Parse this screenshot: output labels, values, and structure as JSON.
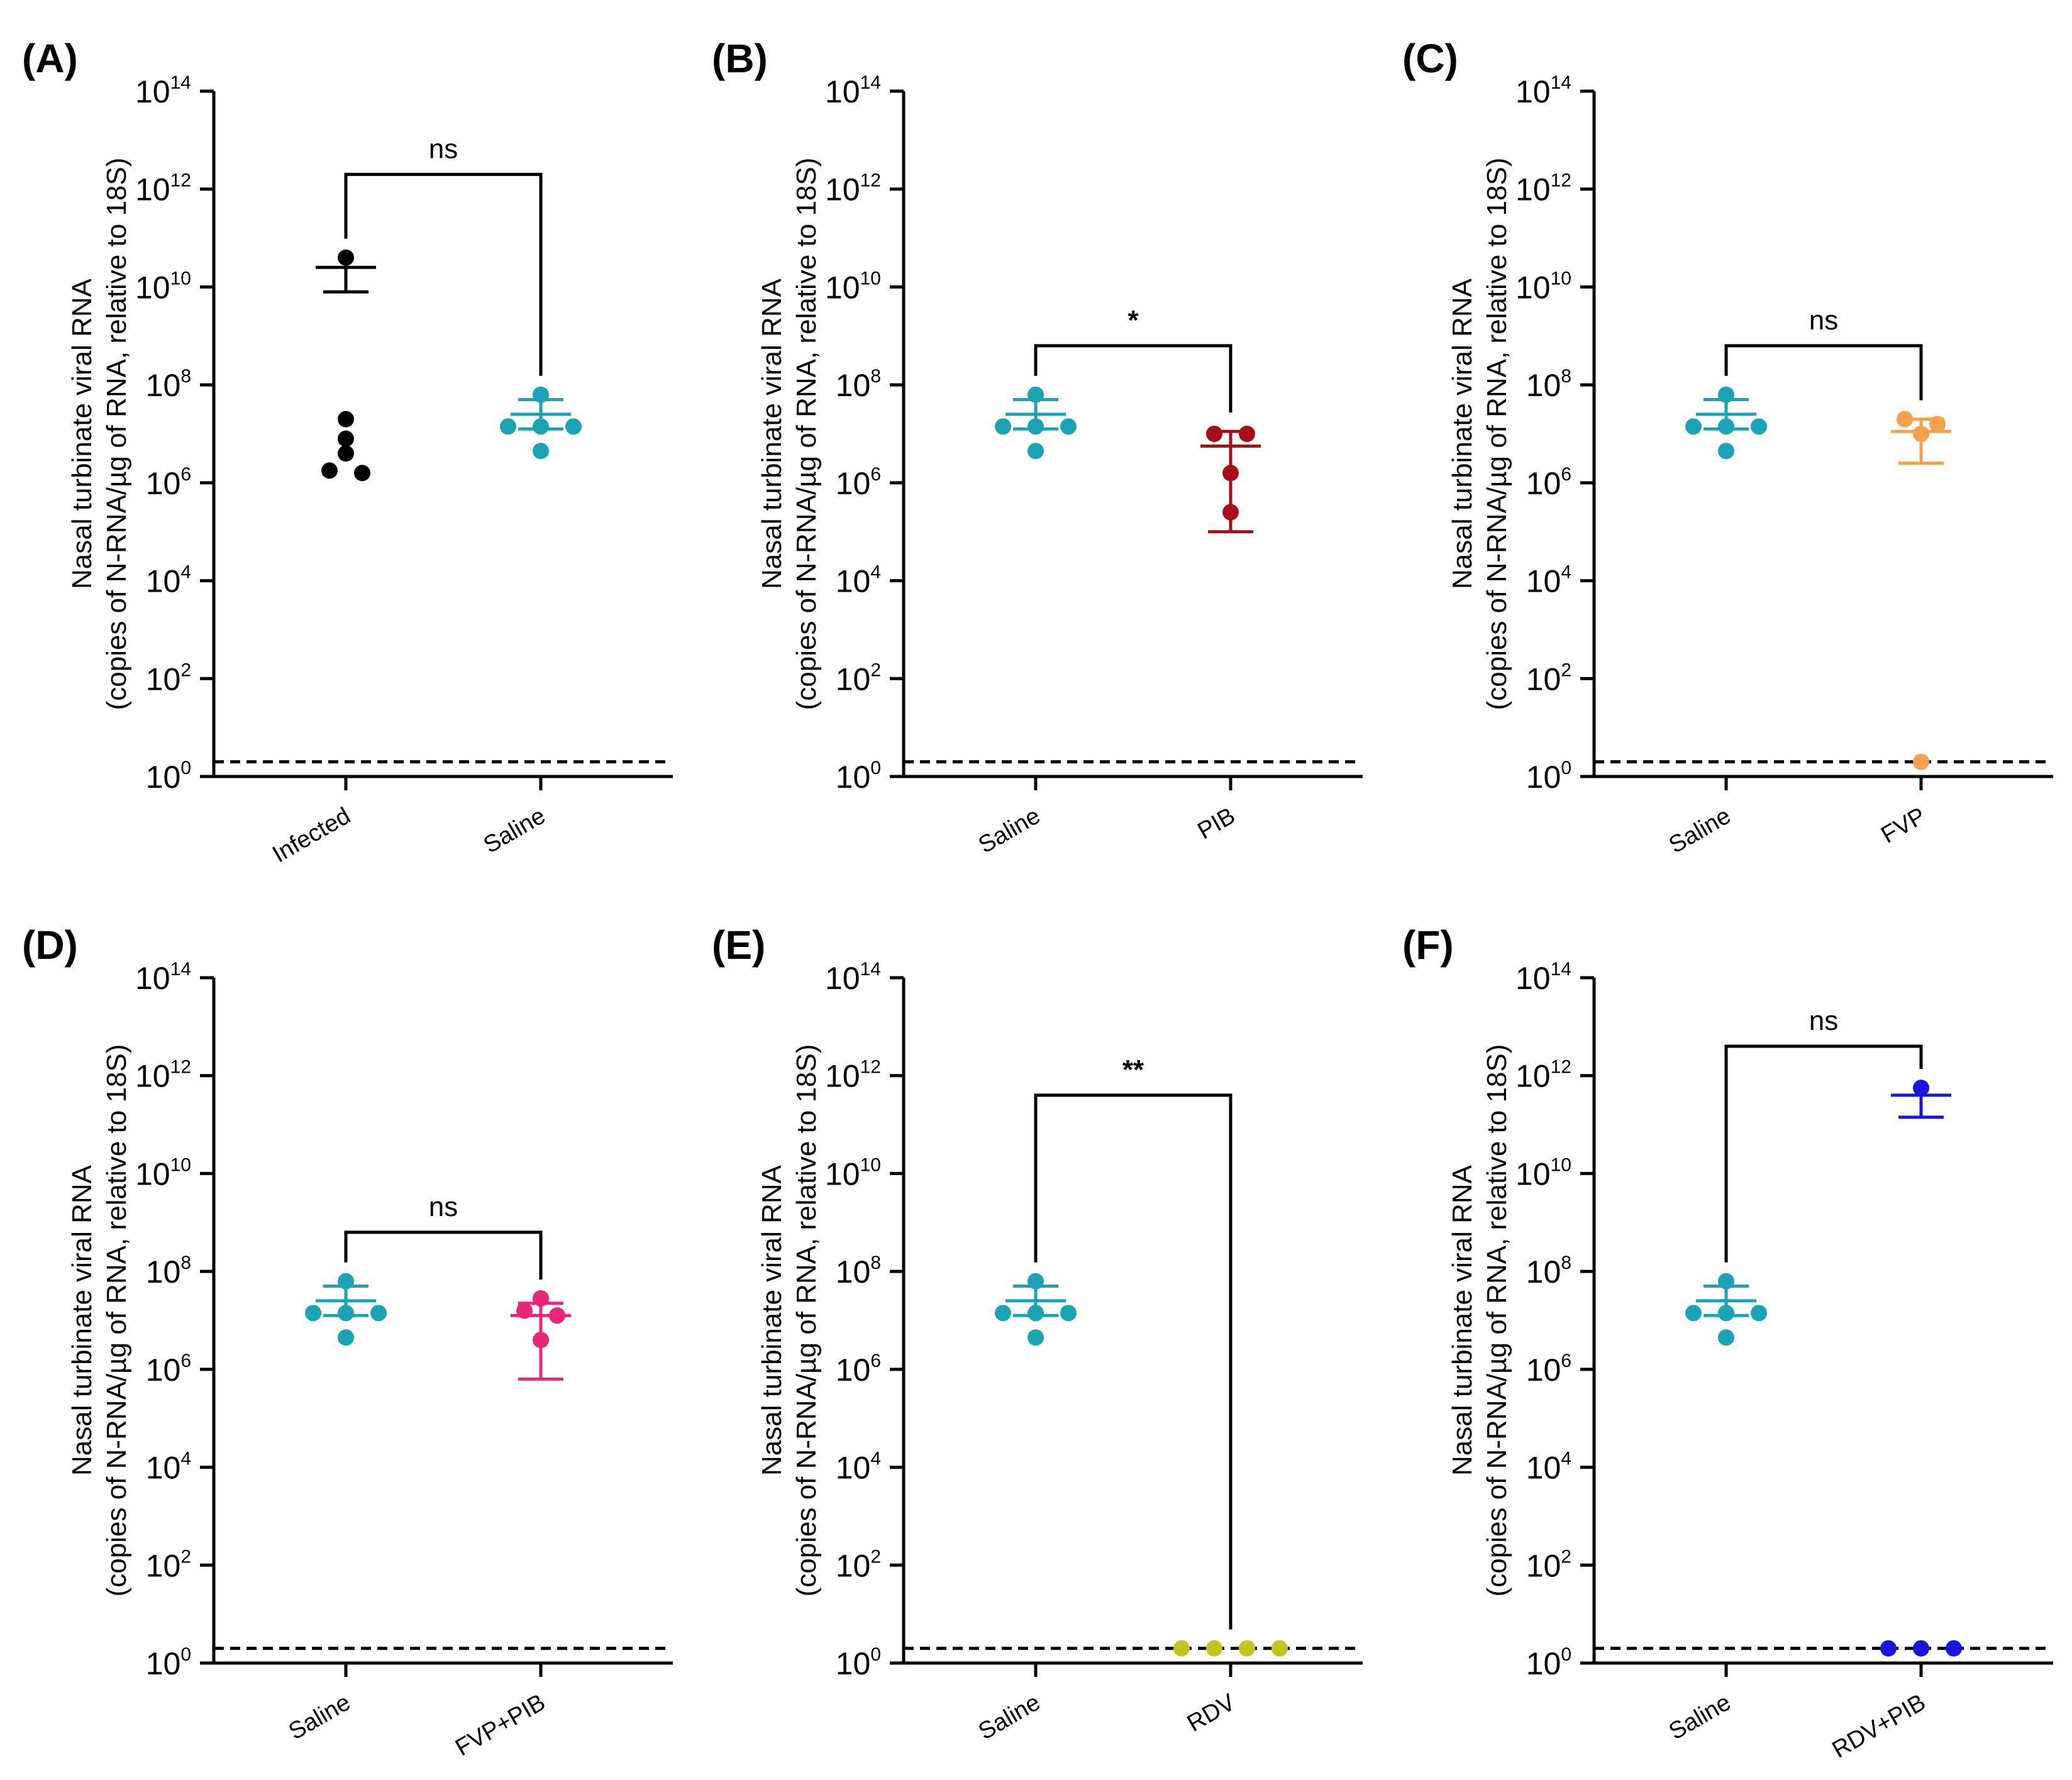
{
  "figure": {
    "y_axis_label_line1": "Nasal turbinate viral RNA",
    "y_axis_label_line2": "(copies of N-RNA/µg of RNA, relative to 18S)",
    "tick_base": "10",
    "y_exponents": [
      "0",
      "2",
      "4",
      "6",
      "8",
      "10",
      "12",
      "14"
    ]
  },
  "chart_data": [
    {
      "type": "scatter",
      "panel": "(A)",
      "yscale": "log10",
      "ylim_log10": [
        0,
        14
      ],
      "limit_of_detection_log10": 0.3,
      "categories": [
        "Infected",
        "Saline"
      ],
      "comparison": {
        "label": "ns",
        "top_log10": 12.3
      },
      "series": [
        {
          "name": "Infected",
          "color": "#000000",
          "points_log10": [
            10.6,
            7.3,
            6.9,
            6.6,
            6.25,
            6.2
          ],
          "mean_log10": 10.4,
          "sem_low_log10": 9.9
        },
        {
          "name": "Saline",
          "color": "#1aa3b5",
          "points_log10": [
            7.8,
            7.15,
            7.15,
            7.15,
            6.65
          ],
          "mean_log10": 7.4,
          "sem_low_log10": 7.1,
          "sem_high_log10": 7.7
        }
      ]
    },
    {
      "type": "scatter",
      "panel": "(B)",
      "yscale": "log10",
      "ylim_log10": [
        0,
        14
      ],
      "limit_of_detection_log10": 0.3,
      "categories": [
        "Saline",
        "PIB"
      ],
      "comparison": {
        "label": "*",
        "top_log10": 8.8
      },
      "series": [
        {
          "name": "Saline",
          "color": "#1aa3b5",
          "points_log10": [
            7.8,
            7.15,
            7.15,
            7.15,
            6.65
          ],
          "mean_log10": 7.4,
          "sem_low_log10": 7.1,
          "sem_high_log10": 7.7
        },
        {
          "name": "PIB",
          "color": "#a50f15",
          "points_log10": [
            7.0,
            7.0,
            6.2,
            5.4
          ],
          "mean_log10": 6.75,
          "sem_low_log10": 5.0,
          "sem_high_log10": 7.05
        }
      ]
    },
    {
      "type": "scatter",
      "panel": "(C)",
      "yscale": "log10",
      "ylim_log10": [
        0,
        14
      ],
      "limit_of_detection_log10": 0.3,
      "categories": [
        "Saline",
        "FVP"
      ],
      "comparison": {
        "label": "ns",
        "top_log10": 8.8
      },
      "series": [
        {
          "name": "Saline",
          "color": "#1aa3b5",
          "points_log10": [
            7.8,
            7.15,
            7.15,
            7.15,
            6.65
          ],
          "mean_log10": 7.4,
          "sem_low_log10": 7.1,
          "sem_high_log10": 7.7
        },
        {
          "name": "FVP",
          "color": "#f4a04c",
          "points_log10": [
            7.3,
            7.2,
            7.0,
            0.3
          ],
          "mean_log10": 7.05,
          "sem_low_log10": 6.4,
          "sem_high_log10": 7.3
        }
      ]
    },
    {
      "type": "scatter",
      "panel": "(D)",
      "yscale": "log10",
      "ylim_log10": [
        0,
        14
      ],
      "limit_of_detection_log10": 0.3,
      "categories": [
        "Saline",
        "FVP+PIB"
      ],
      "comparison": {
        "label": "ns",
        "top_log10": 8.8
      },
      "series": [
        {
          "name": "Saline",
          "color": "#1aa3b5",
          "points_log10": [
            7.8,
            7.15,
            7.15,
            7.15,
            6.65
          ],
          "mean_log10": 7.4,
          "sem_low_log10": 7.1,
          "sem_high_log10": 7.7
        },
        {
          "name": "FVP+PIB",
          "color": "#e8267a",
          "points_log10": [
            7.45,
            7.2,
            7.1,
            6.6
          ],
          "mean_log10": 7.1,
          "sem_low_log10": 5.8,
          "sem_high_log10": 7.35
        }
      ]
    },
    {
      "type": "scatter",
      "panel": "(E)",
      "yscale": "log10",
      "ylim_log10": [
        0,
        14
      ],
      "limit_of_detection_log10": 0.3,
      "categories": [
        "Saline",
        "RDV"
      ],
      "comparison": {
        "label": "**",
        "top_log10": 11.6
      },
      "series": [
        {
          "name": "Saline",
          "color": "#1aa3b5",
          "points_log10": [
            7.8,
            7.15,
            7.15,
            7.15,
            6.65
          ],
          "mean_log10": 7.4,
          "sem_low_log10": 7.1,
          "sem_high_log10": 7.7
        },
        {
          "name": "RDV",
          "color": "#c4c41e",
          "points_log10": [
            0.3,
            0.3,
            0.3,
            0.3
          ],
          "mean_log10": 0.3
        }
      ]
    },
    {
      "type": "scatter",
      "panel": "(F)",
      "yscale": "log10",
      "ylim_log10": [
        0,
        14
      ],
      "limit_of_detection_log10": 0.3,
      "categories": [
        "Saline",
        "RDV+PIB"
      ],
      "comparison": {
        "label": "ns",
        "top_log10": 12.6
      },
      "series": [
        {
          "name": "Saline",
          "color": "#1aa3b5",
          "points_log10": [
            7.8,
            7.15,
            7.15,
            7.15,
            6.65
          ],
          "mean_log10": 7.4,
          "sem_low_log10": 7.1,
          "sem_high_log10": 7.7
        },
        {
          "name": "RDV+PIB",
          "color": "#1616e0",
          "points_log10": [
            11.75,
            0.3,
            0.3,
            0.3
          ],
          "mean_log10": 11.6,
          "sem_low_log10": 11.15
        }
      ]
    }
  ]
}
